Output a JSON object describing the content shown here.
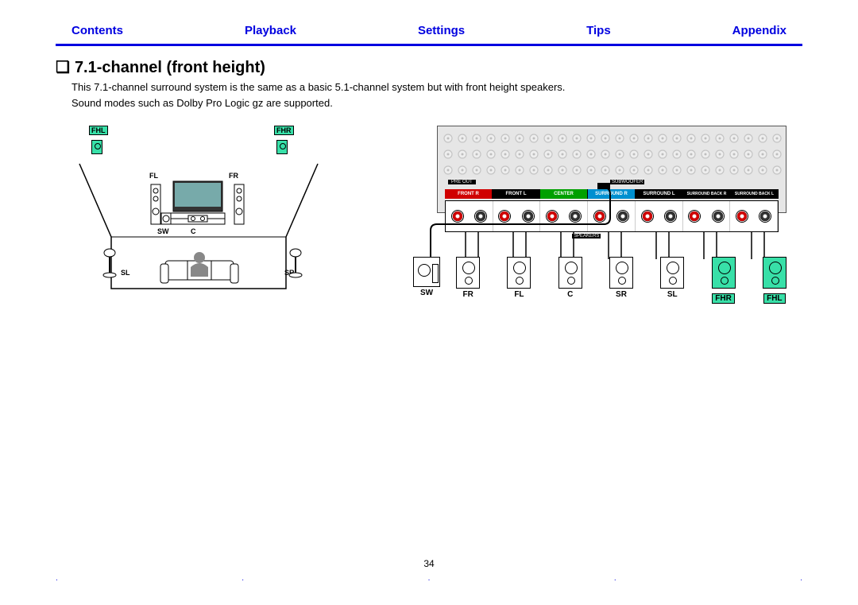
{
  "nav": {
    "items": [
      "Contents",
      "Playback",
      "Settings",
      "Tips",
      "Appendix"
    ],
    "color": "#0000e0"
  },
  "heading": "7.1-channel (front height)",
  "desc_line1": "This 7.1-channel surround system is the same as a basic 5.1-channel system but with front height speakers.",
  "desc_line2": "Sound modes such as Dolby Pro Logic gz are supported.",
  "room": {
    "tags": {
      "fhl": "FHL",
      "fhr": "FHR"
    },
    "labels": {
      "fl": "FL",
      "fr": "FR",
      "sw": "SW",
      "c": "C",
      "sl": "SL",
      "sr": "SR"
    },
    "highlight_color": "#38e0a8"
  },
  "panel": {
    "preout_label": "PRE OUT",
    "subwoofer_label": "SUBWOOFER",
    "speakers_label": "SPEAKERS",
    "terminal_labels": [
      {
        "text": "FRONT R",
        "bg": "#d00000"
      },
      {
        "text": "FRONT L",
        "bg": "#000000"
      },
      {
        "text": "CENTER",
        "bg": "#00a000"
      },
      {
        "text": "SURROUND R",
        "bg": "#0090d0"
      },
      {
        "text": "SURROUND L",
        "bg": "#000000"
      },
      {
        "text": "SURROUND BACK R",
        "bg": "#000000"
      },
      {
        "text": "SURROUND BACK L",
        "bg": "#000000"
      }
    ],
    "terminal_colors": {
      "pos": "#d00000",
      "neg": "#303030"
    },
    "speakers": [
      {
        "id": "sw",
        "label": "SW",
        "type": "sub",
        "highlight": false
      },
      {
        "id": "fr",
        "label": "FR",
        "type": "spk",
        "highlight": false
      },
      {
        "id": "fl",
        "label": "FL",
        "type": "spk",
        "highlight": false
      },
      {
        "id": "c",
        "label": "C",
        "type": "spk",
        "highlight": false
      },
      {
        "id": "sr",
        "label": "SR",
        "type": "spk",
        "highlight": false
      },
      {
        "id": "sl",
        "label": "SL",
        "type": "spk",
        "highlight": false
      },
      {
        "id": "fhr",
        "label": "FHR",
        "type": "spk",
        "highlight": true
      },
      {
        "id": "fhl",
        "label": "FHL",
        "type": "spk",
        "highlight": true
      }
    ]
  },
  "page_number": "34"
}
